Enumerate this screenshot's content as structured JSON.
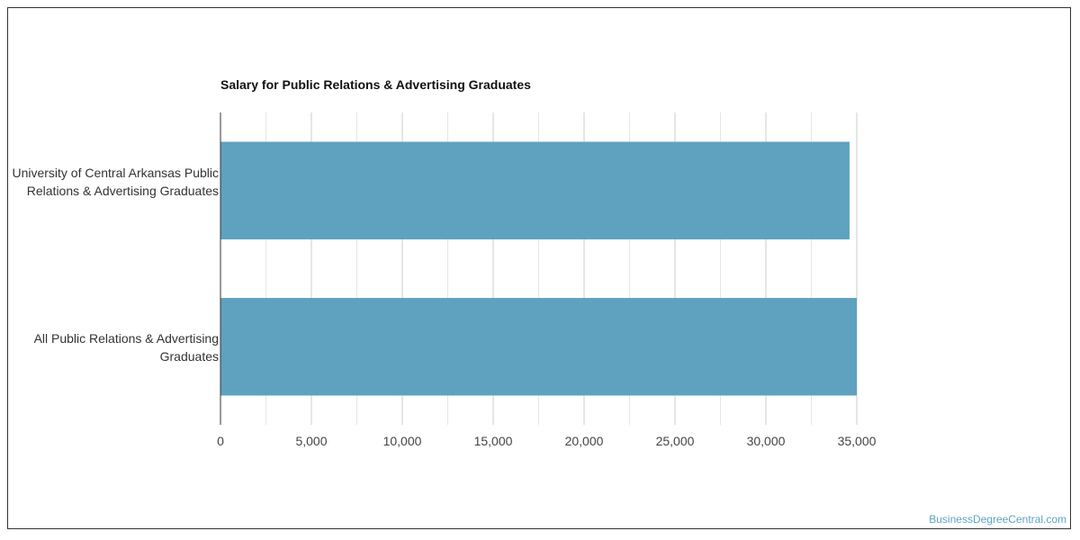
{
  "chart_data": {
    "type": "bar",
    "orientation": "horizontal",
    "title": "Salary for Public Relations & Advertising Graduates",
    "categories": [
      "University of Central Arkansas Public Relations & Advertising Graduates",
      "All Public Relations & Advertising Graduates"
    ],
    "values": [
      34600,
      35000
    ],
    "xlim": [
      0,
      35000
    ],
    "x_ticks": [
      "0",
      "5,000",
      "10,000",
      "15,000",
      "20,000",
      "25,000",
      "30,000",
      "35,000"
    ],
    "x_tick_values": [
      0,
      5000,
      10000,
      15000,
      20000,
      25000,
      30000,
      35000
    ],
    "grid": true,
    "bar_color": "#5ea2bf"
  },
  "watermark": "BusinessDegreeCentral.com"
}
